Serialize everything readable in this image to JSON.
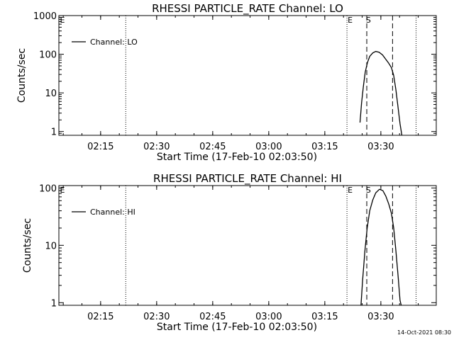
{
  "footer": {
    "timestamp": "14-Oct-2021 08:30"
  },
  "chart_data": [
    {
      "type": "line",
      "title": "RHESSI PARTICLE_RATE Channel: LO",
      "xlabel": "Start Time (17-Feb-10 02:03:50)",
      "ylabel": "Counts/sec",
      "xlim_minutes": [
        0,
        101
      ],
      "ylim": [
        0.8,
        1000
      ],
      "yscale": "log",
      "xticks": [
        {
          "label": "02:15",
          "value": 11.17
        },
        {
          "label": "02:30",
          "value": 26.17
        },
        {
          "label": "02:45",
          "value": 41.17
        },
        {
          "label": "03:00",
          "value": 56.17
        },
        {
          "label": "03:15",
          "value": 71.17
        },
        {
          "label": "03:30",
          "value": 86.17
        }
      ],
      "yticks": [
        {
          "label": "1",
          "value": 1
        },
        {
          "label": "10",
          "value": 10
        },
        {
          "label": "100",
          "value": 100
        },
        {
          "label": "1000",
          "value": 1000
        }
      ],
      "legend": {
        "label": "Channel: LO",
        "placement": "top-left"
      },
      "dotted_lines": [
        17.9,
        77.1,
        95.6
      ],
      "dashed_lines": [
        82.4,
        89.3
      ],
      "markers": [
        {
          "label": "E",
          "x": 77.1
        },
        {
          "label": "E",
          "x": 0.1
        },
        {
          "label": "S",
          "x": 82.0
        }
      ],
      "series": [
        {
          "name": "Channel: LO",
          "x": [
            80.6,
            81.0,
            81.5,
            82.0,
            82.6,
            83.2,
            84.0,
            84.8,
            85.7,
            86.6,
            87.4,
            88.2,
            89.0,
            89.6,
            90.2,
            90.8,
            91.3,
            91.8
          ],
          "y": [
            1.7,
            5.5,
            15,
            35,
            62,
            88,
            108,
            118,
            113,
            96,
            76,
            60,
            45,
            28,
            12,
            4.0,
            1.6,
            0.8
          ]
        }
      ]
    },
    {
      "type": "line",
      "title": "RHESSI PARTICLE_RATE Channel: HI",
      "xlabel": "Start Time (17-Feb-10 02:03:50)",
      "ylabel": "Counts/sec",
      "xlim_minutes": [
        0,
        101
      ],
      "ylim": [
        0.9,
        110
      ],
      "yscale": "log",
      "xticks": [
        {
          "label": "02:15",
          "value": 11.17
        },
        {
          "label": "02:30",
          "value": 26.17
        },
        {
          "label": "02:45",
          "value": 41.17
        },
        {
          "label": "03:00",
          "value": 56.17
        },
        {
          "label": "03:15",
          "value": 71.17
        },
        {
          "label": "03:30",
          "value": 86.17
        }
      ],
      "yticks": [
        {
          "label": "1",
          "value": 1
        },
        {
          "label": "10",
          "value": 10
        },
        {
          "label": "100",
          "value": 100
        }
      ],
      "legend": {
        "label": "Channel: HI",
        "placement": "top-left"
      },
      "dotted_lines": [
        17.9,
        77.1,
        95.6
      ],
      "dashed_lines": [
        82.4,
        89.3
      ],
      "markers": [
        {
          "label": "E",
          "x": 77.1
        },
        {
          "label": "E",
          "x": 0.1
        },
        {
          "label": "S",
          "x": 82.0
        }
      ],
      "series": [
        {
          "name": "Channel: HI",
          "x": [
            80.8,
            81.3,
            81.9,
            82.5,
            83.2,
            84.0,
            84.8,
            85.8,
            86.7,
            87.5,
            88.3,
            89.0,
            89.6,
            90.2,
            90.8,
            91.3,
            91.8
          ],
          "y": [
            0.8,
            2.5,
            8,
            20,
            40,
            62,
            82,
            95,
            90,
            72,
            52,
            36,
            20,
            8,
            2.8,
            1.1,
            0.8
          ]
        }
      ]
    }
  ]
}
